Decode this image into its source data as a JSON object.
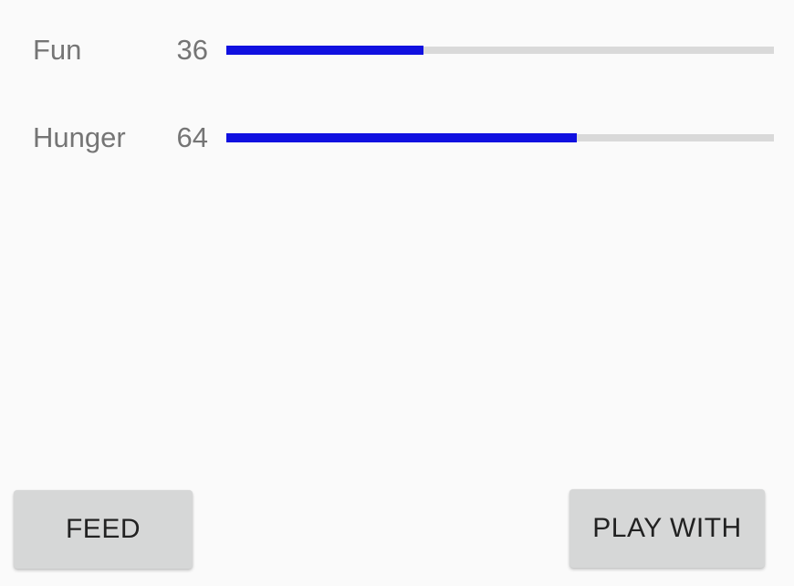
{
  "stats": [
    {
      "label": "Fun",
      "value": "36",
      "fraction": 0.36
    },
    {
      "label": "Hunger",
      "value": "64",
      "fraction": 0.64
    }
  ],
  "colors": {
    "bar_fill": "#1010e0",
    "bar_track": "#d9d9d9",
    "label_text": "#757575",
    "button_bg": "#d6d7d7"
  },
  "buttons": {
    "feed_label": "FEED",
    "play_label": "PLAY WITH"
  }
}
